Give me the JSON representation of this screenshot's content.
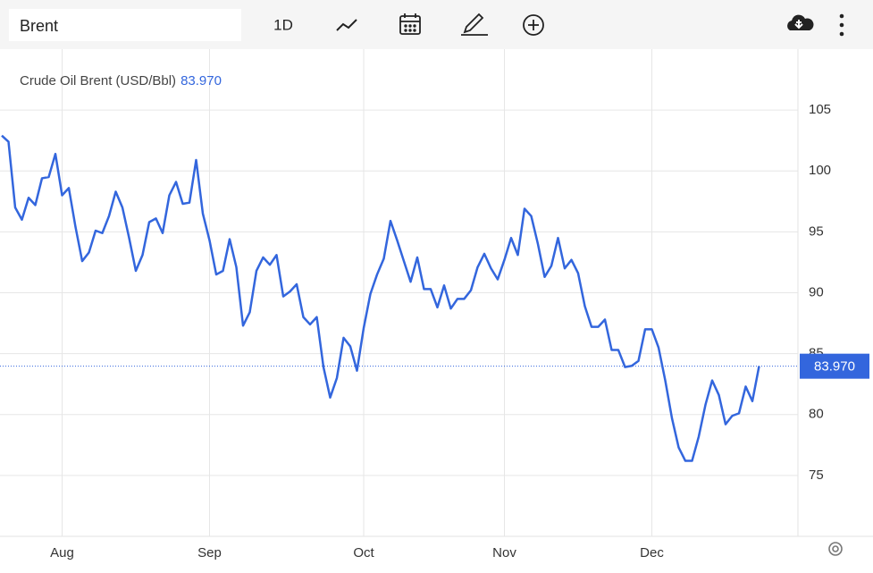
{
  "toolbar": {
    "symbol": "Brent",
    "interval": "1D"
  },
  "chart_data": {
    "type": "line",
    "title": "Crude Oil Brent (USD/Bbl)",
    "last_price": {
      "value": 83.97,
      "label": "83.970"
    },
    "color": "#3366dd",
    "categories": [
      null,
      null,
      null,
      null,
      null,
      null,
      null,
      null,
      null,
      "Aug",
      null,
      null,
      null,
      null,
      null,
      null,
      null,
      null,
      null,
      null,
      null,
      null,
      null,
      null,
      null,
      null,
      null,
      null,
      null,
      null,
      null,
      "Sep",
      null,
      null,
      null,
      null,
      null,
      null,
      null,
      null,
      null,
      null,
      null,
      null,
      null,
      null,
      null,
      null,
      null,
      null,
      null,
      null,
      null,
      null,
      "Oct",
      null,
      null,
      null,
      null,
      null,
      null,
      null,
      null,
      null,
      null,
      null,
      null,
      null,
      null,
      null,
      null,
      null,
      null,
      null,
      null,
      "Nov",
      null,
      null,
      null,
      null,
      null,
      null,
      null,
      null,
      null,
      null,
      null,
      null,
      null,
      null,
      null,
      null,
      null,
      null,
      null,
      null,
      null,
      "Dec",
      null,
      null,
      null,
      null,
      null,
      null,
      null,
      null,
      null,
      null,
      null,
      null,
      null,
      null,
      null,
      null
    ],
    "values": [
      102.9,
      102.4,
      97.0,
      96.0,
      97.8,
      97.2,
      99.4,
      99.5,
      101.4,
      98.0,
      98.6,
      95.4,
      92.6,
      93.3,
      95.1,
      94.9,
      96.3,
      98.3,
      97.0,
      94.5,
      91.8,
      93.1,
      95.8,
      96.1,
      94.9,
      98.0,
      99.1,
      97.3,
      97.4,
      100.9,
      96.5,
      94.3,
      91.5,
      91.8,
      94.4,
      92.1,
      87.3,
      88.4,
      91.8,
      92.9,
      92.3,
      93.1,
      89.7,
      90.1,
      90.7,
      88.0,
      87.4,
      88.0,
      83.9,
      81.4,
      83.0,
      86.3,
      85.6,
      83.6,
      87.1,
      89.9,
      91.5,
      92.8,
      95.9,
      94.3,
      92.6,
      90.9,
      92.9,
      90.3,
      90.3,
      88.8,
      90.6,
      88.7,
      89.5,
      89.5,
      90.2,
      92.1,
      93.2,
      92.0,
      91.1,
      92.7,
      94.5,
      93.1,
      96.9,
      96.3,
      94.0,
      91.3,
      92.2,
      94.5,
      92.0,
      92.7,
      91.6,
      88.9,
      87.2,
      87.2,
      87.8,
      85.3,
      85.3,
      83.9,
      84.0,
      84.4,
      87.0,
      87.0,
      85.5,
      82.8,
      79.7,
      77.3,
      76.2,
      76.2,
      78.2,
      80.8,
      82.8,
      81.6,
      79.2,
      79.9,
      80.1,
      82.3,
      81.1,
      83.97
    ],
    "ylim": [
      70,
      110
    ],
    "yticks": [
      75,
      80,
      85,
      90,
      95,
      100,
      105
    ],
    "grid": true
  }
}
